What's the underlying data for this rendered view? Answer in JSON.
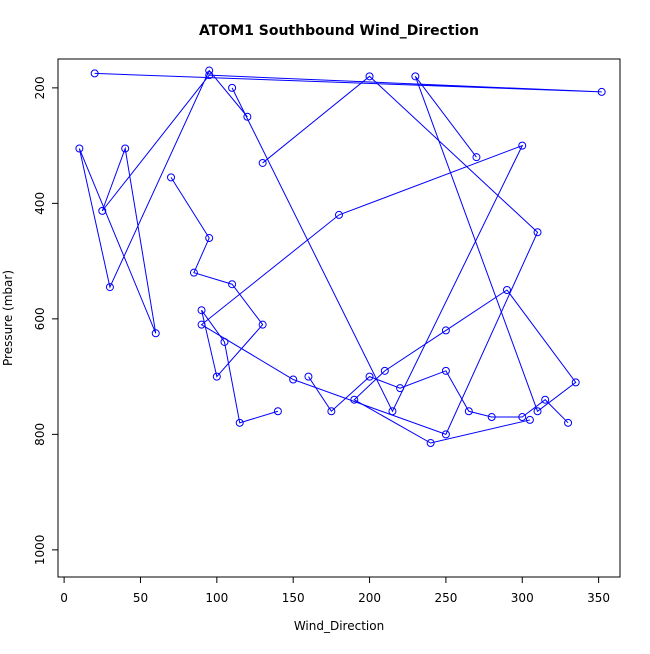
{
  "chart_data": {
    "type": "scatter",
    "title": "ATOM1 Southbound Wind_Direction",
    "xlabel": "Wind_Direction",
    "ylabel": "Pressure (mbar)",
    "xlim": [
      -4,
      364
    ],
    "ylim": [
      1047,
      150
    ],
    "y_reversed": true,
    "x_ticks": [
      0,
      50,
      100,
      150,
      200,
      250,
      300,
      350
    ],
    "y_ticks": [
      200,
      400,
      600,
      800,
      1000
    ],
    "x_tick_labels": [
      "0",
      "50",
      "100",
      "150",
      "200",
      "250",
      "300",
      "350"
    ],
    "y_tick_labels": [
      "200",
      "400",
      "600",
      "800",
      "1000"
    ],
    "grid": false,
    "marker": "open-circle",
    "connected": true,
    "series_color": "#0000ff",
    "series": [
      {
        "x": [
          20,
          352,
          95,
          25,
          40,
          60,
          10,
          30,
          95,
          120
        ],
        "y": [
          175,
          207,
          178,
          413,
          305,
          625,
          305,
          545,
          170,
          250
        ]
      },
      {
        "x": [
          110,
          215,
          300,
          180,
          90,
          150,
          250,
          310,
          200,
          130
        ],
        "y": [
          200,
          760,
          300,
          420,
          610,
          705,
          800,
          450,
          180,
          330
        ]
      },
      {
        "x": [
          270,
          230,
          310,
          335,
          290,
          250,
          210,
          190,
          240,
          305
        ],
        "y": [
          320,
          180,
          760,
          710,
          550,
          620,
          690,
          740,
          815,
          775
        ]
      },
      {
        "x": [
          160,
          175,
          200,
          220,
          250,
          265,
          280,
          300,
          315,
          330
        ],
        "y": [
          700,
          760,
          700,
          720,
          690,
          760,
          770,
          770,
          740,
          780
        ]
      },
      {
        "x": [
          70,
          95,
          85,
          110,
          130,
          100,
          90,
          105,
          115,
          140
        ],
        "y": [
          355,
          460,
          520,
          540,
          610,
          700,
          585,
          640,
          780,
          760
        ]
      }
    ]
  }
}
